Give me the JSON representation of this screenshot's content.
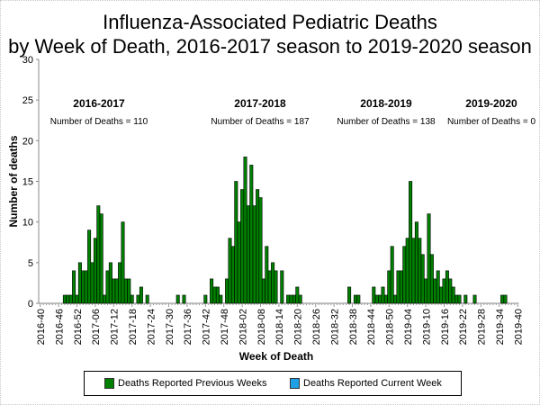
{
  "chart_data": {
    "type": "bar",
    "title": "Influenza-Associated Pediatric Deaths",
    "subtitle": "by Week of Death, 2016-2017 season to 2019-2020 season",
    "xlabel": "Week of Death",
    "ylabel": "Number of deaths",
    "ylim": [
      0,
      30
    ],
    "yticks": [
      0,
      5,
      10,
      15,
      20,
      25,
      30
    ],
    "x_start_week": "2016-40",
    "x_end_week": "2019-40",
    "xtick_labels": [
      "2016-40",
      "2016-46",
      "2016-52",
      "2017-06",
      "2017-12",
      "2017-18",
      "2017-24",
      "2017-30",
      "2017-36",
      "2017-42",
      "2017-48",
      "2018-02",
      "2018-08",
      "2018-14",
      "2018-20",
      "2018-26",
      "2018-32",
      "2018-38",
      "2018-44",
      "2018-50",
      "2019-04",
      "2019-10",
      "2019-16",
      "2019-22",
      "2019-28",
      "2019-34",
      "2019-40"
    ],
    "grid": false,
    "legend_position": "bottom",
    "season_annotations": [
      {
        "season": "2016-2017",
        "text": "Number of Deaths = 110"
      },
      {
        "season": "2017-2018",
        "text": "Number of Deaths = 187"
      },
      {
        "season": "2018-2019",
        "text": "Number of Deaths = 138"
      },
      {
        "season": "2019-2020",
        "text": "Number of Deaths = 0"
      }
    ],
    "series": [
      {
        "name": "Deaths Reported Previous Weeks",
        "color": "#008000",
        "points": [
          {
            "week": "2016-48",
            "value": 1
          },
          {
            "week": "2016-49",
            "value": 1
          },
          {
            "week": "2016-50",
            "value": 1
          },
          {
            "week": "2016-51",
            "value": 4
          },
          {
            "week": "2016-52",
            "value": 1
          },
          {
            "week": "2017-01",
            "value": 5
          },
          {
            "week": "2017-02",
            "value": 4
          },
          {
            "week": "2017-03",
            "value": 4
          },
          {
            "week": "2017-04",
            "value": 9
          },
          {
            "week": "2017-05",
            "value": 5
          },
          {
            "week": "2017-06",
            "value": 8
          },
          {
            "week": "2017-07",
            "value": 12
          },
          {
            "week": "2017-08",
            "value": 11
          },
          {
            "week": "2017-09",
            "value": 1
          },
          {
            "week": "2017-10",
            "value": 4
          },
          {
            "week": "2017-11",
            "value": 5
          },
          {
            "week": "2017-12",
            "value": 3
          },
          {
            "week": "2017-13",
            "value": 3
          },
          {
            "week": "2017-14",
            "value": 5
          },
          {
            "week": "2017-15",
            "value": 10
          },
          {
            "week": "2017-16",
            "value": 3
          },
          {
            "week": "2017-17",
            "value": 3
          },
          {
            "week": "2017-18",
            "value": 1
          },
          {
            "week": "2017-20",
            "value": 1
          },
          {
            "week": "2017-21",
            "value": 2
          },
          {
            "week": "2017-23",
            "value": 1
          },
          {
            "week": "2017-33",
            "value": 1
          },
          {
            "week": "2017-35",
            "value": 1
          },
          {
            "week": "2017-42",
            "value": 1
          },
          {
            "week": "2017-44",
            "value": 3
          },
          {
            "week": "2017-45",
            "value": 2
          },
          {
            "week": "2017-46",
            "value": 2
          },
          {
            "week": "2017-47",
            "value": 1
          },
          {
            "week": "2017-49",
            "value": 3
          },
          {
            "week": "2017-50",
            "value": 8
          },
          {
            "week": "2017-51",
            "value": 7
          },
          {
            "week": "2017-52",
            "value": 15
          },
          {
            "week": "2018-01",
            "value": 10
          },
          {
            "week": "2018-02",
            "value": 14
          },
          {
            "week": "2018-03",
            "value": 18
          },
          {
            "week": "2018-04",
            "value": 12
          },
          {
            "week": "2018-05",
            "value": 17
          },
          {
            "week": "2018-06",
            "value": 12
          },
          {
            "week": "2018-07",
            "value": 14
          },
          {
            "week": "2018-08",
            "value": 13
          },
          {
            "week": "2018-09",
            "value": 3
          },
          {
            "week": "2018-10",
            "value": 7
          },
          {
            "week": "2018-11",
            "value": 4
          },
          {
            "week": "2018-12",
            "value": 5
          },
          {
            "week": "2018-13",
            "value": 4
          },
          {
            "week": "2018-15",
            "value": 4
          },
          {
            "week": "2018-17",
            "value": 1
          },
          {
            "week": "2018-18",
            "value": 1
          },
          {
            "week": "2018-19",
            "value": 1
          },
          {
            "week": "2018-20",
            "value": 2
          },
          {
            "week": "2018-21",
            "value": 1
          },
          {
            "week": "2018-37",
            "value": 2
          },
          {
            "week": "2018-39",
            "value": 1
          },
          {
            "week": "2018-40",
            "value": 1
          },
          {
            "week": "2018-45",
            "value": 2
          },
          {
            "week": "2018-46",
            "value": 1
          },
          {
            "week": "2018-47",
            "value": 1
          },
          {
            "week": "2018-48",
            "value": 2
          },
          {
            "week": "2018-49",
            "value": 1
          },
          {
            "week": "2018-50",
            "value": 4
          },
          {
            "week": "2018-51",
            "value": 7
          },
          {
            "week": "2018-52",
            "value": 1
          },
          {
            "week": "2019-01",
            "value": 4
          },
          {
            "week": "2019-02",
            "value": 4
          },
          {
            "week": "2019-03",
            "value": 7
          },
          {
            "week": "2019-04",
            "value": 8
          },
          {
            "week": "2019-05",
            "value": 15
          },
          {
            "week": "2019-06",
            "value": 8
          },
          {
            "week": "2019-07",
            "value": 10
          },
          {
            "week": "2019-08",
            "value": 8
          },
          {
            "week": "2019-09",
            "value": 6
          },
          {
            "week": "2019-10",
            "value": 3
          },
          {
            "week": "2019-11",
            "value": 11
          },
          {
            "week": "2019-12",
            "value": 6
          },
          {
            "week": "2019-13",
            "value": 3
          },
          {
            "week": "2019-14",
            "value": 4
          },
          {
            "week": "2019-15",
            "value": 2
          },
          {
            "week": "2019-16",
            "value": 3
          },
          {
            "week": "2019-17",
            "value": 4
          },
          {
            "week": "2019-18",
            "value": 3
          },
          {
            "week": "2019-19",
            "value": 2
          },
          {
            "week": "2019-20",
            "value": 1
          },
          {
            "week": "2019-21",
            "value": 1
          },
          {
            "week": "2019-23",
            "value": 1
          },
          {
            "week": "2019-26",
            "value": 1
          },
          {
            "week": "2019-35",
            "value": 1
          },
          {
            "week": "2019-36",
            "value": 1
          }
        ]
      },
      {
        "name": "Deaths Reported Current Week",
        "color": "#1ea0e6",
        "points": []
      }
    ]
  }
}
